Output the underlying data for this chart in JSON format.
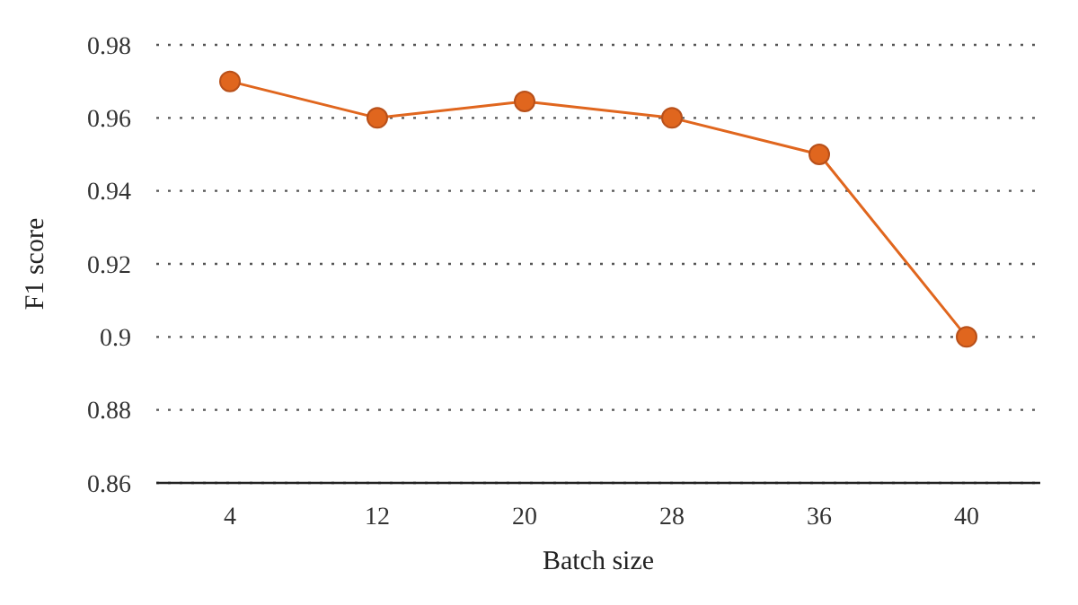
{
  "chart_data": {
    "type": "line",
    "xlabel": "Batch size",
    "ylabel": "F1 score",
    "categories": [
      "4",
      "12",
      "20",
      "28",
      "36",
      "40"
    ],
    "series": [
      {
        "color": "#e0661e",
        "values": [
          0.97,
          0.96,
          0.9645,
          0.96,
          0.95,
          0.9
        ]
      }
    ],
    "ylim": [
      0.86,
      0.98
    ],
    "yticks": [
      0.86,
      0.88,
      0.9,
      0.92,
      0.94,
      0.96,
      0.98
    ],
    "grid": "y",
    "marker": "circle",
    "line_style": "solid"
  }
}
